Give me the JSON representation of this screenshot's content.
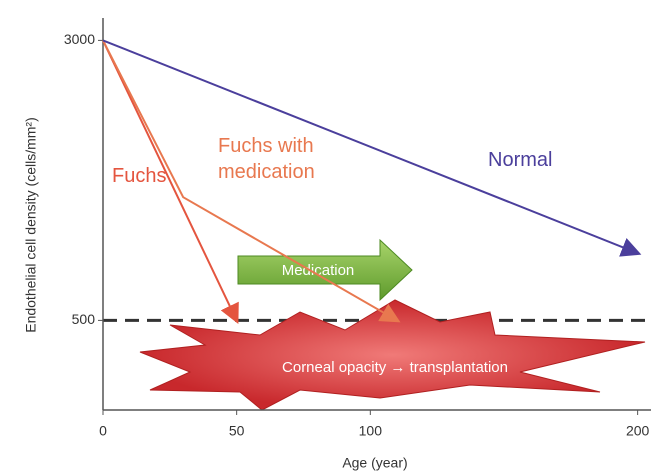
{
  "chart_data": {
    "type": "line",
    "ylabel": "Endothelial cell density (cells/mm²)",
    "xlabel": "Age (year)",
    "xlim": [
      0,
      205
    ],
    "ylim": [
      -300,
      3200
    ],
    "xticks": [
      0,
      50,
      100,
      200
    ],
    "yticks": [
      500,
      3000
    ],
    "series": [
      {
        "name": "Fuchs",
        "color": "#e4553f",
        "x": [
          0,
          50
        ],
        "values": [
          3000,
          500
        ]
      },
      {
        "name": "Fuchs with medication",
        "color": "#e8784f",
        "x": [
          0,
          30,
          110
        ],
        "values": [
          3000,
          1600,
          500
        ]
      },
      {
        "name": "Normal",
        "color": "#4b3f9c",
        "x": [
          0,
          200
        ],
        "values": [
          3000,
          1100
        ]
      }
    ],
    "threshold": 500,
    "annotations": [
      "Medication",
      "Corneal opacity → transplantation"
    ]
  }
}
